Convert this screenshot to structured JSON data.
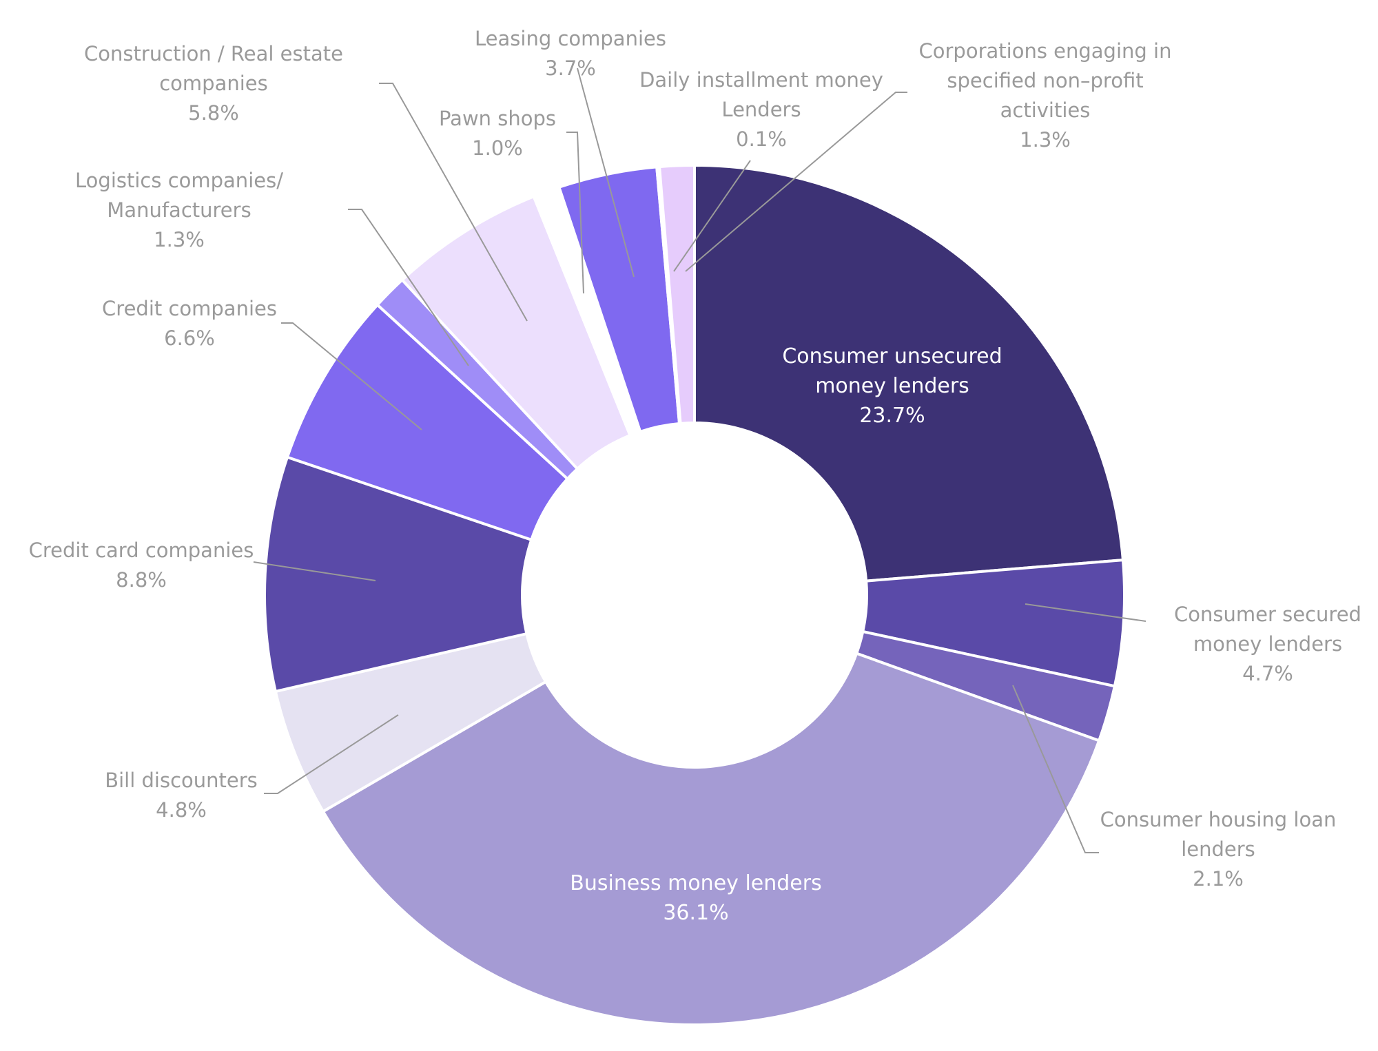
{
  "chart_data": {
    "type": "pie",
    "title": "",
    "start_angle_deg": 0,
    "direction": "clockwise",
    "series": [
      {
        "name": "Consumer unsecured money lenders",
        "label_lines": [
          "Consumer unsecured",
          "money lenders"
        ],
        "value": 23.7,
        "value_label": "23.7%",
        "color": "#3D3275",
        "label_inside": true,
        "exploded": false
      },
      {
        "name": "Consumer secured money lenders",
        "label_lines": [
          "Consumer secured",
          "money lenders"
        ],
        "value": 4.7,
        "value_label": "4.7%",
        "color": "#5A4AA8",
        "label_inside": false,
        "exploded": false
      },
      {
        "name": "Consumer housing loan lenders",
        "label_lines": [
          "Consumer housing loan",
          "lenders"
        ],
        "value": 2.1,
        "value_label": "2.1%",
        "color": "#7564BB",
        "label_inside": false,
        "exploded": false
      },
      {
        "name": "Business money lenders",
        "label_lines": [
          "Business money lenders"
        ],
        "value": 36.1,
        "value_label": "36.1%",
        "color": "#A59BD4",
        "label_inside": true,
        "exploded": false
      },
      {
        "name": "Bill discounters",
        "label_lines": [
          "Bill discounters"
        ],
        "value": 4.8,
        "value_label": "4.8%",
        "color": "#E5E2F2",
        "label_inside": false,
        "exploded": false
      },
      {
        "name": "Credit card companies",
        "label_lines": [
          "Credit card companies"
        ],
        "value": 8.8,
        "value_label": "8.8%",
        "color": "#5A4AA8",
        "label_inside": false,
        "exploded": false
      },
      {
        "name": "Credit companies",
        "label_lines": [
          "Credit companies"
        ],
        "value": 6.6,
        "value_label": "6.6%",
        "color": "#8069F0",
        "label_inside": false,
        "exploded": false
      },
      {
        "name": "Logistics companies/ Manufacturers",
        "label_lines": [
          "Logistics companies/",
          "Manufacturers"
        ],
        "value": 1.3,
        "value_label": "1.3%",
        "color": "#9F8DF7",
        "label_inside": false,
        "exploded": false
      },
      {
        "name": "Construction / Real estate companies",
        "label_lines": [
          "Construction / Real estate",
          "companies"
        ],
        "value": 5.8,
        "value_label": "5.8%",
        "color": "#ECDFFD",
        "label_inside": false,
        "exploded": false
      },
      {
        "name": "Pawn shops",
        "label_lines": [
          "Pawn shops"
        ],
        "value": 1.0,
        "value_label": "1.0%",
        "color": "#FFFFFF",
        "label_inside": false,
        "exploded": false
      },
      {
        "name": "Leasing companies",
        "label_lines": [
          "Leasing companies"
        ],
        "value": 3.7,
        "value_label": "3.7%",
        "color": "#7F69F0",
        "label_inside": false,
        "exploded": false
      },
      {
        "name": "Daily installment money Lenders",
        "label_lines": [
          "Daily installment money",
          "Lenders"
        ],
        "value": 0.1,
        "value_label": "0.1%",
        "color": "#D9C6FB",
        "label_inside": false,
        "exploded": false
      },
      {
        "name": "Corporations engaging in specified non-profit activities",
        "label_lines": [
          "Corporations engaging in",
          "specified non–profit",
          "activities"
        ],
        "value": 1.3,
        "value_label": "1.3%",
        "color": "#E6CCFC",
        "label_inside": false,
        "exploded": false
      }
    ]
  }
}
